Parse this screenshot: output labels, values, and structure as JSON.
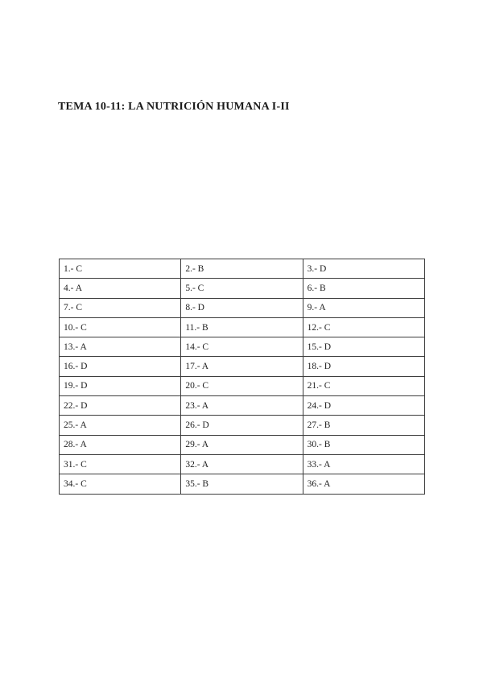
{
  "page": {
    "title": "TEMA 10-11: LA NUTRICIÓN HUMANA I-II"
  },
  "answers_table": {
    "rows": [
      [
        "1.- C",
        "2.- B",
        "3.- D"
      ],
      [
        "4.- A",
        "5.- C",
        "6.- B"
      ],
      [
        "7.- C",
        "8.- D",
        "9.- A"
      ],
      [
        "10.- C",
        "11.- B",
        "12.- C"
      ],
      [
        "13.- A",
        "14.- C",
        "15.- D"
      ],
      [
        "16.- D",
        "17.- A",
        "18.- D"
      ],
      [
        "19.- D",
        "20.- C",
        "21.- C"
      ],
      [
        "22.- D",
        "23.- A",
        "24.- D"
      ],
      [
        "25.- A",
        "26.- D",
        "27.- B"
      ],
      [
        "28.- A",
        "29.- A",
        "30.- B"
      ],
      [
        "31.- C",
        "32.- A",
        "33.- A"
      ],
      [
        "34.- C",
        "35.- B",
        "36.- A"
      ]
    ]
  }
}
